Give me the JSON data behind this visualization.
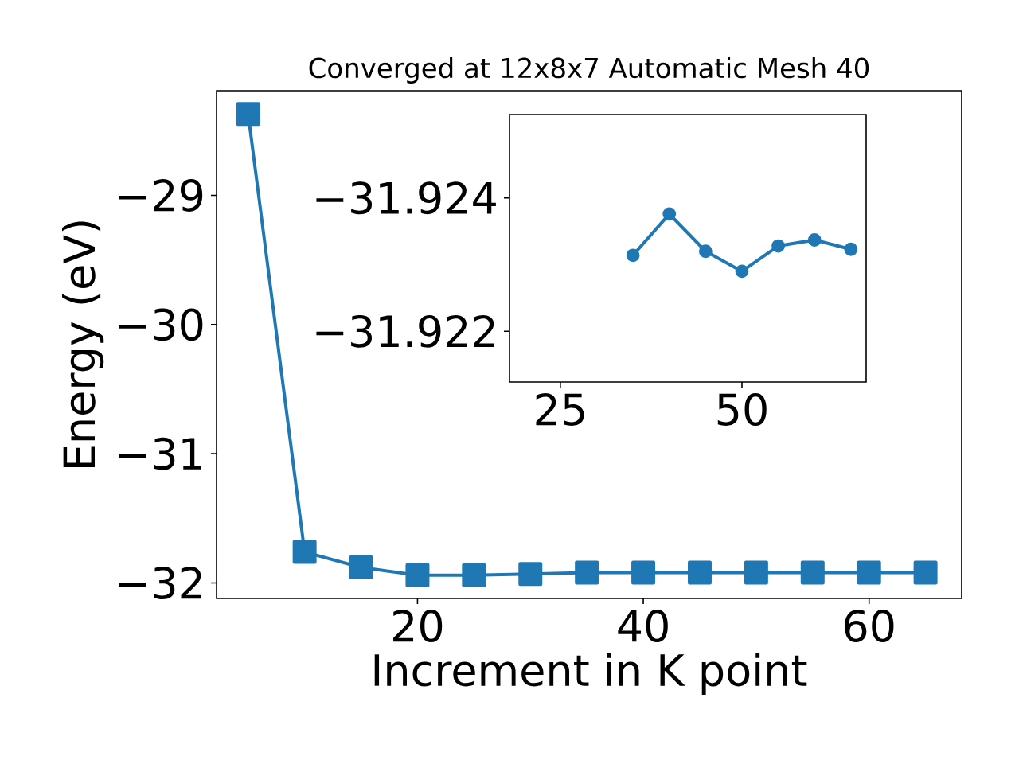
{
  "chart_data": [
    {
      "type": "line",
      "title": "Converged at 12x8x7 Automatic Mesh 40",
      "xlabel": "Increment in K point",
      "ylabel": "Energy (eV)",
      "x": [
        5,
        10,
        15,
        20,
        25,
        30,
        35,
        40,
        45,
        50,
        55,
        60,
        65
      ],
      "series": [
        {
          "color": "#1f77b4",
          "values": [
            -28.37,
            -31.76,
            -31.88,
            -31.94,
            -31.94,
            -31.93,
            -31.92,
            -31.92,
            -31.92,
            -31.92,
            -31.92,
            -31.92,
            -31.92
          ]
        }
      ],
      "xlim": [
        2.2,
        68.2
      ],
      "ylim": [
        -32.12,
        -28.19
      ],
      "xticks": [
        20,
        40,
        60
      ],
      "yticks": [
        {
          "value": -32,
          "label": "−32"
        },
        {
          "value": -31,
          "label": "−31"
        },
        {
          "value": -30,
          "label": "−30"
        },
        {
          "value": -29,
          "label": "−29"
        }
      ],
      "marker": "square",
      "line_style": "solid",
      "grid": false
    },
    {
      "type": "line",
      "x": [
        35,
        40,
        45,
        50,
        55,
        60,
        65
      ],
      "series": [
        {
          "color": "#1f77b4",
          "values": [
            -31.92314,
            -31.92376,
            -31.9232,
            -31.9229,
            -31.92328,
            -31.92337,
            -31.92323
          ]
        }
      ],
      "xlim": [
        18,
        67.1
      ],
      "ylim": [
        -31.92124,
        -31.92525
      ],
      "xticks": [
        25,
        50
      ],
      "yticks": [
        {
          "value": -31.924,
          "label": "−31.924"
        },
        {
          "value": -31.922,
          "label": "−31.922"
        }
      ],
      "marker": "circle",
      "line_style": "solid",
      "grid": false
    }
  ]
}
